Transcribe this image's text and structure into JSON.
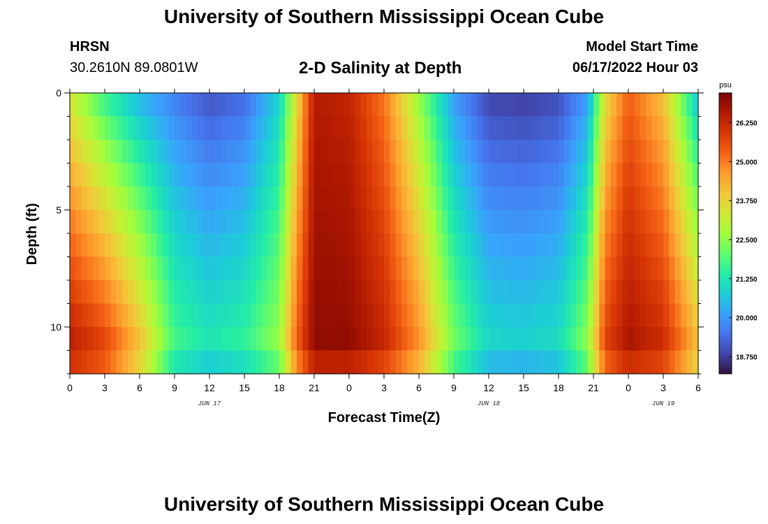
{
  "header": {
    "title": "University of Southern Mississippi Ocean Cube",
    "station": "HRSN",
    "coords": "30.2610N  89.0801W",
    "subtitle": "2-D Salinity at Depth",
    "start_label": "Model Start Time",
    "start_value": "06/17/2022 Hour 03"
  },
  "footer": {
    "title": "University of Southern Mississippi Ocean Cube"
  },
  "chart_data": {
    "type": "heatmap",
    "title": "2-D Salinity at Depth",
    "xlabel": "Forecast Time(Z)",
    "ylabel": "Depth (ft)",
    "x_hours_range": [
      0,
      54
    ],
    "y_range_ft": [
      0,
      12
    ],
    "y_inverted": true,
    "x_tick_labels": [
      "0",
      "3",
      "6",
      "9",
      "12",
      "15",
      "18",
      "21",
      "0",
      "3",
      "6",
      "9",
      "12",
      "15",
      "18",
      "21",
      "0",
      "3",
      "6"
    ],
    "date_labels": [
      {
        "label": "JUN 17",
        "hour": 12
      },
      {
        "label": "JUN 18",
        "hour": 36
      },
      {
        "label": "JUN 19",
        "hour": 51
      }
    ],
    "y_tick_labels": [
      {
        "label": "0",
        "depth": 0
      },
      {
        "label": "5",
        "depth": 5
      },
      {
        "label": "10",
        "depth": 10
      }
    ],
    "colorbar": {
      "unit": "psu",
      "min": 18.2,
      "max": 27.2,
      "ticks": [
        "18.750",
        "20.000",
        "21.250",
        "22.500",
        "23.750",
        "25.000",
        "26.250"
      ],
      "tick_values": [
        18.75,
        20.0,
        21.25,
        22.5,
        23.75,
        25.0,
        26.25
      ],
      "colormap": [
        "#30123b",
        "#4145ab",
        "#4675ed",
        "#39a2fc",
        "#1bcfd4",
        "#24eca6",
        "#61fc6c",
        "#a4fc3b",
        "#d1e834",
        "#f3c63a",
        "#fe9b2d",
        "#f36315",
        "#d93806",
        "#b11901",
        "#7a0402"
      ]
    },
    "salinity_model": {
      "time_hours": [
        0,
        3,
        6,
        9,
        12,
        15,
        18,
        19.5,
        21,
        24,
        27,
        30,
        33,
        36,
        39,
        42,
        44.5,
        46,
        48,
        51,
        54
      ],
      "surface_psu": [
        23.2,
        21.5,
        20.3,
        19.6,
        19.0,
        19.3,
        20.8,
        23.5,
        26.5,
        26.3,
        25.0,
        22.5,
        20.0,
        18.8,
        18.7,
        18.9,
        20.0,
        23.5,
        25.3,
        24.0,
        20.5
      ],
      "bottom_psu": [
        26.8,
        26.2,
        24.5,
        22.0,
        21.5,
        21.8,
        22.8,
        25.5,
        27.0,
        27.0,
        26.4,
        25.0,
        22.5,
        21.2,
        21.1,
        21.3,
        22.8,
        26.0,
        26.8,
        26.4,
        24.5
      ]
    }
  }
}
